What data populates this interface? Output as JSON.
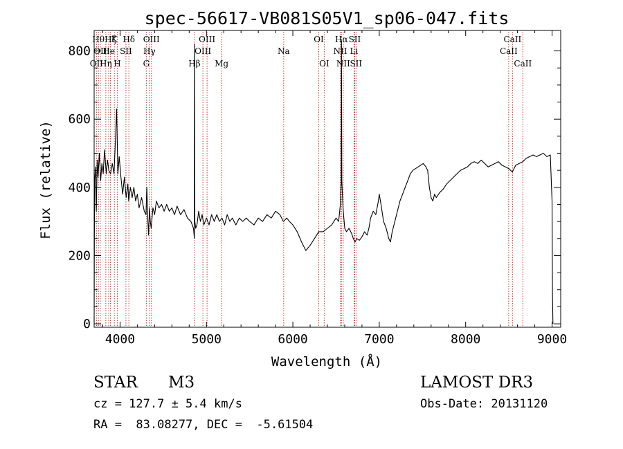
{
  "chart_data": {
    "type": "line",
    "title": "spec-56617-VB081S05V1_sp06-047.fits",
    "xlabel": "Wavelength (Å)",
    "ylabel": "Flux (relative)",
    "xlim": [
      3700,
      9100
    ],
    "ylim": [
      -10,
      860
    ],
    "xticks": [
      4000,
      5000,
      6000,
      7000,
      8000,
      9000
    ],
    "xtick_labels": [
      "4000",
      "5000",
      "6000",
      "7000",
      "8000",
      "9000"
    ],
    "yticks": [
      0,
      200,
      400,
      600,
      800
    ],
    "ytick_labels": [
      "0",
      "200",
      "400",
      "600",
      "800"
    ],
    "grid": false,
    "series": [
      {
        "name": "flux",
        "color": "#000000",
        "points": [
          [
            3700,
            0
          ],
          [
            3702,
            180
          ],
          [
            3706,
            420
          ],
          [
            3715,
            460
          ],
          [
            3725,
            330
          ],
          [
            3735,
            480
          ],
          [
            3745,
            430
          ],
          [
            3760,
            500
          ],
          [
            3775,
            420
          ],
          [
            3790,
            470
          ],
          [
            3805,
            440
          ],
          [
            3820,
            510
          ],
          [
            3840,
            440
          ],
          [
            3855,
            480
          ],
          [
            3870,
            450
          ],
          [
            3890,
            440
          ],
          [
            3910,
            470
          ],
          [
            3930,
            440
          ],
          [
            3950,
            560
          ],
          [
            3960,
            630
          ],
          [
            3975,
            440
          ],
          [
            3990,
            490
          ],
          [
            4010,
            430
          ],
          [
            4030,
            380
          ],
          [
            4050,
            430
          ],
          [
            4070,
            370
          ],
          [
            4090,
            410
          ],
          [
            4100,
            360
          ],
          [
            4120,
            400
          ],
          [
            4140,
            370
          ],
          [
            4160,
            400
          ],
          [
            4180,
            360
          ],
          [
            4200,
            380
          ],
          [
            4220,
            340
          ],
          [
            4250,
            370
          ],
          [
            4280,
            330
          ],
          [
            4300,
            320
          ],
          [
            4310,
            400
          ],
          [
            4320,
            310
          ],
          [
            4330,
            260
          ],
          [
            4340,
            340
          ],
          [
            4350,
            300
          ],
          [
            4360,
            280
          ],
          [
            4380,
            340
          ],
          [
            4400,
            320
          ],
          [
            4420,
            360
          ],
          [
            4450,
            340
          ],
          [
            4480,
            350
          ],
          [
            4510,
            330
          ],
          [
            4540,
            350
          ],
          [
            4570,
            330
          ],
          [
            4600,
            340
          ],
          [
            4630,
            320
          ],
          [
            4660,
            345
          ],
          [
            4700,
            320
          ],
          [
            4740,
            335
          ],
          [
            4780,
            310
          ],
          [
            4820,
            300
          ],
          [
            4850,
            280
          ],
          [
            4860,
            250
          ],
          [
            4861,
            560
          ],
          [
            4863,
            820
          ],
          [
            4866,
            300
          ],
          [
            4875,
            280
          ],
          [
            4890,
            290
          ],
          [
            4910,
            330
          ],
          [
            4930,
            300
          ],
          [
            4950,
            320
          ],
          [
            4970,
            290
          ],
          [
            5000,
            310
          ],
          [
            5030,
            290
          ],
          [
            5060,
            320
          ],
          [
            5090,
            300
          ],
          [
            5120,
            320
          ],
          [
            5150,
            300
          ],
          [
            5180,
            310
          ],
          [
            5210,
            290
          ],
          [
            5240,
            320
          ],
          [
            5270,
            300
          ],
          [
            5300,
            310
          ],
          [
            5340,
            290
          ],
          [
            5380,
            310
          ],
          [
            5420,
            300
          ],
          [
            5460,
            310
          ],
          [
            5500,
            300
          ],
          [
            5550,
            290
          ],
          [
            5600,
            310
          ],
          [
            5650,
            300
          ],
          [
            5700,
            320
          ],
          [
            5750,
            310
          ],
          [
            5800,
            330
          ],
          [
            5850,
            320
          ],
          [
            5890,
            300
          ],
          [
            5930,
            310
          ],
          [
            5960,
            300
          ],
          [
            6000,
            290
          ],
          [
            6050,
            270
          ],
          [
            6100,
            240
          ],
          [
            6150,
            215
          ],
          [
            6200,
            230
          ],
          [
            6250,
            250
          ],
          [
            6300,
            270
          ],
          [
            6350,
            270
          ],
          [
            6400,
            280
          ],
          [
            6450,
            290
          ],
          [
            6500,
            310
          ],
          [
            6530,
            300
          ],
          [
            6550,
            350
          ],
          [
            6560,
            420
          ],
          [
            6563,
            830
          ],
          [
            6567,
            420
          ],
          [
            6580,
            340
          ],
          [
            6600,
            280
          ],
          [
            6620,
            270
          ],
          [
            6650,
            280
          ],
          [
            6680,
            265
          ],
          [
            6700,
            250
          ],
          [
            6720,
            240
          ],
          [
            6740,
            250
          ],
          [
            6770,
            245
          ],
          [
            6800,
            255
          ],
          [
            6830,
            270
          ],
          [
            6860,
            260
          ],
          [
            6880,
            280
          ],
          [
            6900,
            310
          ],
          [
            6930,
            330
          ],
          [
            6960,
            320
          ],
          [
            6990,
            360
          ],
          [
            7000,
            380
          ],
          [
            7020,
            350
          ],
          [
            7050,
            300
          ],
          [
            7080,
            280
          ],
          [
            7110,
            250
          ],
          [
            7130,
            240
          ],
          [
            7150,
            270
          ],
          [
            7180,
            300
          ],
          [
            7210,
            330
          ],
          [
            7240,
            360
          ],
          [
            7270,
            380
          ],
          [
            7300,
            400
          ],
          [
            7330,
            420
          ],
          [
            7360,
            440
          ],
          [
            7390,
            450
          ],
          [
            7420,
            455
          ],
          [
            7450,
            460
          ],
          [
            7480,
            465
          ],
          [
            7510,
            470
          ],
          [
            7540,
            460
          ],
          [
            7560,
            450
          ],
          [
            7580,
            400
          ],
          [
            7600,
            370
          ],
          [
            7620,
            360
          ],
          [
            7640,
            380
          ],
          [
            7660,
            370
          ],
          [
            7700,
            385
          ],
          [
            7740,
            395
          ],
          [
            7780,
            410
          ],
          [
            7820,
            420
          ],
          [
            7860,
            430
          ],
          [
            7900,
            440
          ],
          [
            7940,
            450
          ],
          [
            7980,
            455
          ],
          [
            8020,
            460
          ],
          [
            8060,
            470
          ],
          [
            8100,
            475
          ],
          [
            8140,
            470
          ],
          [
            8180,
            480
          ],
          [
            8220,
            470
          ],
          [
            8260,
            460
          ],
          [
            8300,
            465
          ],
          [
            8340,
            470
          ],
          [
            8380,
            475
          ],
          [
            8420,
            465
          ],
          [
            8460,
            460
          ],
          [
            8500,
            455
          ],
          [
            8540,
            445
          ],
          [
            8580,
            465
          ],
          [
            8620,
            470
          ],
          [
            8660,
            475
          ],
          [
            8700,
            485
          ],
          [
            8740,
            490
          ],
          [
            8780,
            495
          ],
          [
            8820,
            490
          ],
          [
            8860,
            495
          ],
          [
            8900,
            500
          ],
          [
            8940,
            490
          ],
          [
            8980,
            495
          ],
          [
            9000,
            360
          ],
          [
            9005,
            90
          ],
          [
            9010,
            0
          ]
        ]
      }
    ],
    "lines": [
      {
        "x": 3727,
        "label": "OII",
        "row": 3
      },
      {
        "x": 3750,
        "label": "Hθ",
        "row": 1
      },
      {
        "x": 3771,
        "label": "OII",
        "row": 2
      },
      {
        "x": 3835,
        "label": "Hη",
        "row": 3
      },
      {
        "x": 3869,
        "label": "He",
        "row": 2
      },
      {
        "x": 3889,
        "label": "Hζ",
        "row": 1
      },
      {
        "x": 3934,
        "label": "K",
        "row": 1
      },
      {
        "x": 3968,
        "label": "H",
        "row": 3
      },
      {
        "x": 4068,
        "label": "SII",
        "row": 2
      },
      {
        "x": 4102,
        "label": "Hδ",
        "row": 1
      },
      {
        "x": 4304,
        "label": "G",
        "row": 3
      },
      {
        "x": 4340,
        "label": "Hγ",
        "row": 2
      },
      {
        "x": 4363,
        "label": "OIII",
        "row": 1
      },
      {
        "x": 4861,
        "label": "Hβ",
        "row": 3
      },
      {
        "x": 4959,
        "label": "OIII",
        "row": 2
      },
      {
        "x": 5007,
        "label": "OIII",
        "row": 1
      },
      {
        "x": 5175,
        "label": "Mg",
        "row": 3
      },
      {
        "x": 5894,
        "label": "Na",
        "row": 2
      },
      {
        "x": 6300,
        "label": "OI",
        "row": 1
      },
      {
        "x": 6363,
        "label": "OI",
        "row": 3
      },
      {
        "x": 6548,
        "label": "NII",
        "row": 2
      },
      {
        "x": 6563,
        "label": "Hα",
        "row": 1
      },
      {
        "x": 6583,
        "label": "NII",
        "row": 3
      },
      {
        "x": 6708,
        "label": "Li",
        "row": 2
      },
      {
        "x": 6716,
        "label": "SII",
        "row": 1
      },
      {
        "x": 6731,
        "label": "SII",
        "row": 3
      },
      {
        "x": 8498,
        "label": "CaII",
        "row": 2
      },
      {
        "x": 8542,
        "label": "CaII",
        "row": 1
      },
      {
        "x": 8662,
        "label": "CaII",
        "row": 3
      }
    ],
    "line_color": "#cc3333"
  },
  "info": {
    "object_type": "STAR",
    "subclass": "M3",
    "survey": "LAMOST DR3",
    "cz": "cz = 127.7 ± 5.4 km/s",
    "obs_date": "Obs-Date: 20131120",
    "coords": "RA =  83.08277, DEC =  -5.61504"
  }
}
